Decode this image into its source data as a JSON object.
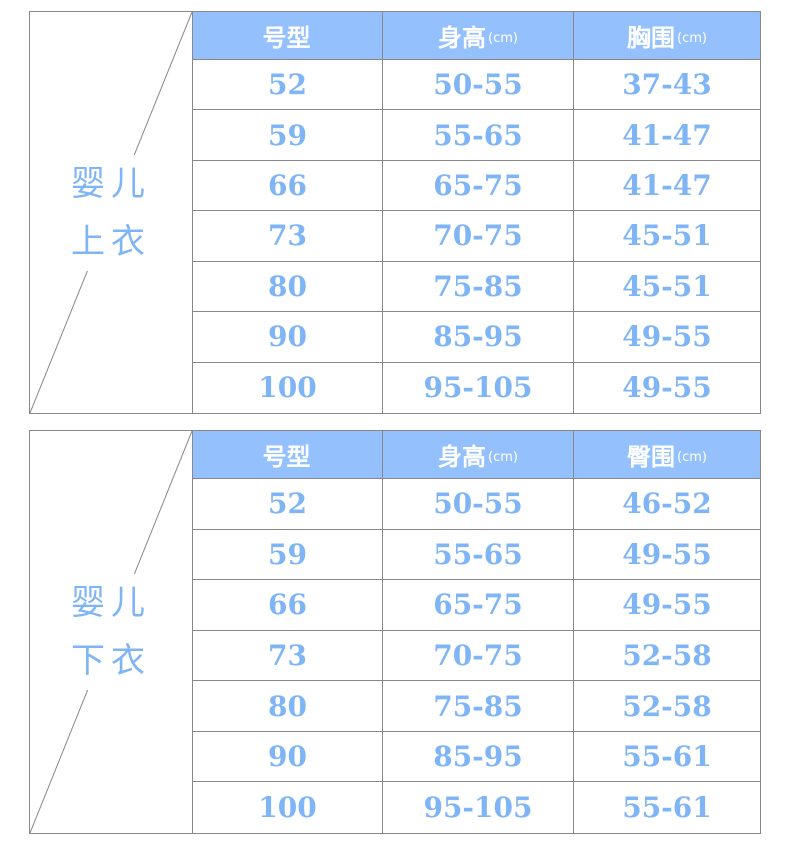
{
  "tables": [
    {
      "label": [
        "婴儿",
        "上衣"
      ],
      "headers": [
        {
          "text": "号型",
          "unit": ""
        },
        {
          "text": "身高",
          "unit": "(cm)"
        },
        {
          "text": "胸围",
          "unit": "(cm)"
        }
      ],
      "rows": [
        [
          "52",
          "50-55",
          "37-43"
        ],
        [
          "59",
          "55-65",
          "41-47"
        ],
        [
          "66",
          "65-75",
          "41-47"
        ],
        [
          "73",
          "70-75",
          "45-51"
        ],
        [
          "80",
          "75-85",
          "45-51"
        ],
        [
          "90",
          "85-95",
          "49-55"
        ],
        [
          "100",
          "95-105",
          "49-55"
        ]
      ]
    },
    {
      "label": [
        "婴儿",
        "下衣"
      ],
      "headers": [
        {
          "text": "号型",
          "unit": ""
        },
        {
          "text": "身高",
          "unit": "(cm)"
        },
        {
          "text": "臀围",
          "unit": "(cm)"
        }
      ],
      "rows": [
        [
          "52",
          "50-55",
          "46-52"
        ],
        [
          "59",
          "55-65",
          "49-55"
        ],
        [
          "66",
          "65-75",
          "49-55"
        ],
        [
          "73",
          "70-75",
          "52-58"
        ],
        [
          "80",
          "75-85",
          "52-58"
        ],
        [
          "90",
          "85-95",
          "55-61"
        ],
        [
          "100",
          "95-105",
          "55-61"
        ]
      ]
    }
  ],
  "colors": {
    "header_bg": "#94c1fd",
    "text": "#7fb5f5"
  }
}
